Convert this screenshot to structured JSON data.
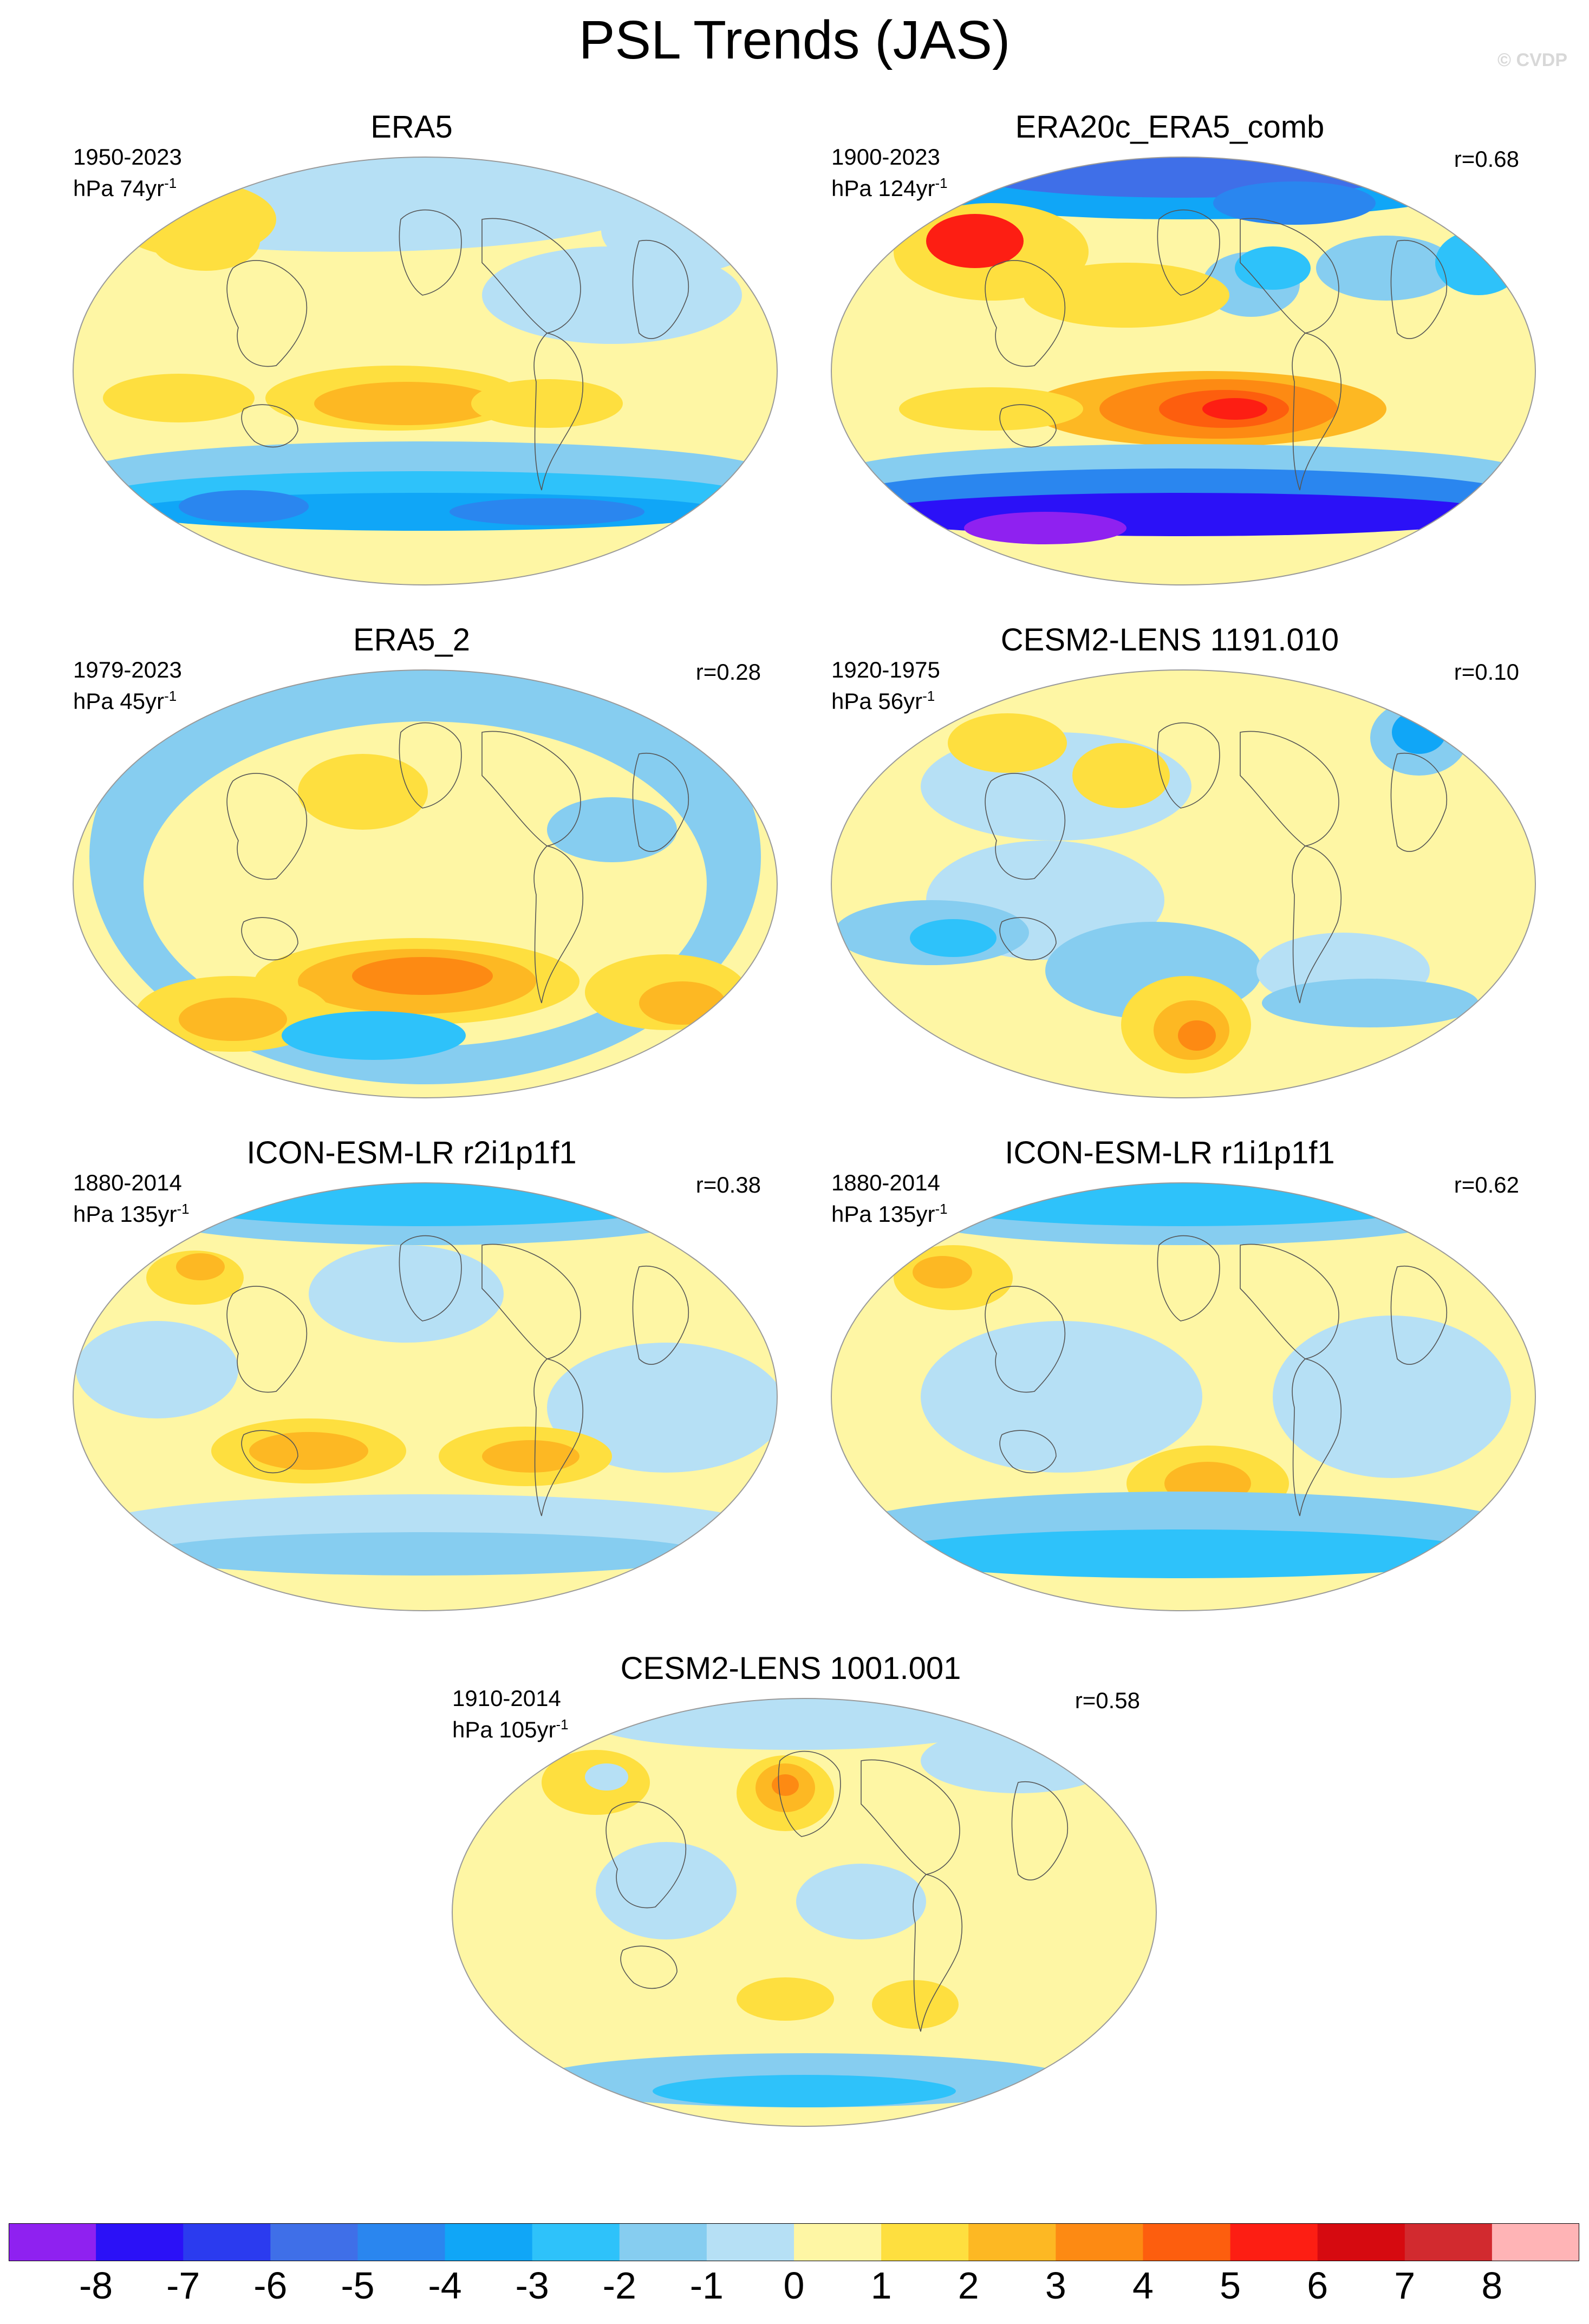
{
  "figure": {
    "title": "PSL Trends (JAS)",
    "copyright": "© CVDP"
  },
  "panels": [
    {
      "title": "ERA5",
      "period": "1950-2023",
      "units": "hPa 74yr",
      "units_sup": "-1",
      "corr": ""
    },
    {
      "title": "ERA20c_ERA5_comb",
      "period": "1900-2023",
      "units": "hPa 124yr",
      "units_sup": "-1",
      "corr": "r=0.68"
    },
    {
      "title": "ERA5_2",
      "period": "1979-2023",
      "units": "hPa 45yr",
      "units_sup": "-1",
      "corr": "r=0.28"
    },
    {
      "title": "CESM2-LENS 1191.010",
      "period": "1920-1975",
      "units": "hPa 56yr",
      "units_sup": "-1",
      "corr": "r=0.10"
    },
    {
      "title": "ICON-ESM-LR r2i1p1f1",
      "period": "1880-2014",
      "units": "hPa 135yr",
      "units_sup": "-1",
      "corr": "r=0.38"
    },
    {
      "title": "ICON-ESM-LR r1i1p1f1",
      "period": "1880-2014",
      "units": "hPa 135yr",
      "units_sup": "-1",
      "corr": "r=0.62"
    },
    {
      "title": "CESM2-LENS 1001.001",
      "period": "1910-2014",
      "units": "hPa 105yr",
      "units_sup": "-1",
      "corr": "r=0.58"
    }
  ],
  "colorbar": {
    "labels": [
      "-8",
      "-7",
      "-6",
      "-5",
      "-4",
      "-3",
      "-2",
      "-1",
      "0",
      "1",
      "2",
      "3",
      "4",
      "5",
      "6",
      "7",
      "8"
    ],
    "colors": [
      "#8f21f0",
      "#2b11f7",
      "#2b3bef",
      "#3f6fe8",
      "#2a86ef",
      "#10a6f7",
      "#2ec2fa",
      "#86cdf0",
      "#b6e0f5",
      "#fef6a4",
      "#fedf3f",
      "#fdb823",
      "#fd8a13",
      "#fd5e0e",
      "#fd1e13",
      "#d60a10",
      "#d22a2f",
      "#ffb4b6"
    ]
  },
  "colors": {
    "ocean_base": "#fef6a4",
    "coast": "#555555"
  }
}
